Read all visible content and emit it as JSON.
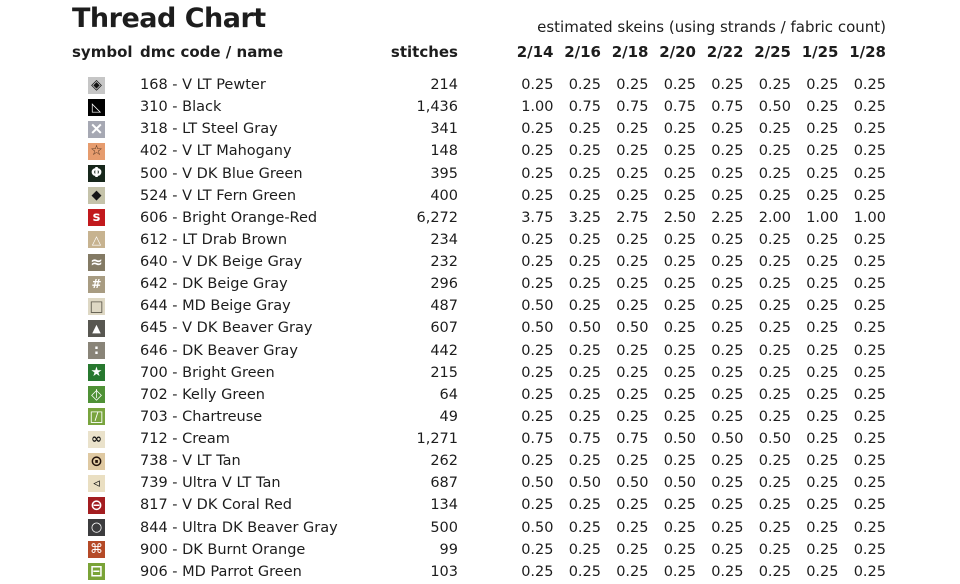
{
  "title": "Thread Chart",
  "table": {
    "columns": {
      "symbol": "symbol",
      "name": "dmc code / name",
      "stitches": "stitches",
      "skeins_group": "estimated skeins (using strands / fabric count)",
      "counts": [
        "2/14",
        "2/16",
        "2/18",
        "2/20",
        "2/22",
        "2/25",
        "1/25",
        "1/28"
      ]
    },
    "rows": [
      {
        "symbol": {
          "icon": "diamond-with-dot-icon",
          "glyph": "◈",
          "bg": "#c6c6c6",
          "fg": "#111111",
          "fs": 14
        },
        "name": "168 - V LT Pewter",
        "stitches": "214",
        "skeins": [
          "0.25",
          "0.25",
          "0.25",
          "0.25",
          "0.25",
          "0.25",
          "0.25",
          "0.25"
        ]
      },
      {
        "symbol": {
          "icon": "right-triangle-icon",
          "glyph": "◺",
          "bg": "#000000",
          "fg": "#ffffff",
          "fs": 12
        },
        "name": "310 - Black",
        "stitches": "1,436",
        "skeins": [
          "1.00",
          "0.75",
          "0.75",
          "0.75",
          "0.75",
          "0.50",
          "0.25",
          "0.25"
        ]
      },
      {
        "symbol": {
          "icon": "cross-x-icon",
          "glyph": "×",
          "bg": "#a6a8b3",
          "fg": "#ffffff",
          "fs": 17,
          "bold": true
        },
        "name": "318 - LT Steel Gray",
        "stitches": "341",
        "skeins": [
          "0.25",
          "0.25",
          "0.25",
          "0.25",
          "0.25",
          "0.25",
          "0.25",
          "0.25"
        ]
      },
      {
        "symbol": {
          "icon": "star-outline-icon",
          "glyph": "☆",
          "bg": "#e69c6e",
          "fg": "#3a2517",
          "fs": 14
        },
        "name": "402 - V LT Mahogany",
        "stitches": "148",
        "skeins": [
          "0.25",
          "0.25",
          "0.25",
          "0.25",
          "0.25",
          "0.25",
          "0.25",
          "0.25"
        ]
      },
      {
        "symbol": {
          "icon": "circle-vertical-bar-icon",
          "glyph": "Φ",
          "bg": "#17271b",
          "fg": "#ffffff",
          "fs": 13,
          "bold": true
        },
        "name": "500 - V DK Blue Green",
        "stitches": "395",
        "skeins": [
          "0.25",
          "0.25",
          "0.25",
          "0.25",
          "0.25",
          "0.25",
          "0.25",
          "0.25"
        ]
      },
      {
        "symbol": {
          "icon": "filled-diamond-icon",
          "glyph": "◆",
          "bg": "#c5c3aa",
          "fg": "#151515",
          "fs": 13
        },
        "name": "524 - V LT Fern Green",
        "stitches": "400",
        "skeins": [
          "0.25",
          "0.25",
          "0.25",
          "0.25",
          "0.25",
          "0.25",
          "0.25",
          "0.25"
        ]
      },
      {
        "symbol": {
          "icon": "letter-s-icon",
          "glyph": "s",
          "bg": "#c2191d",
          "fg": "#ffffff",
          "fs": 13,
          "bold": true
        },
        "name": "606 - Bright Orange-Red",
        "stitches": "6,272",
        "skeins": [
          "3.75",
          "3.25",
          "2.75",
          "2.50",
          "2.25",
          "2.00",
          "1.00",
          "1.00"
        ]
      },
      {
        "symbol": {
          "icon": "triangle-outline-icon",
          "glyph": "△",
          "bg": "#c7b390",
          "fg": "#ffffff",
          "fs": 12
        },
        "name": "612 - LT Drab Brown",
        "stitches": "234",
        "skeins": [
          "0.25",
          "0.25",
          "0.25",
          "0.25",
          "0.25",
          "0.25",
          "0.25",
          "0.25"
        ]
      },
      {
        "symbol": {
          "icon": "approx-equals-icon",
          "glyph": "≈",
          "bg": "#837a64",
          "fg": "#ffffff",
          "fs": 15,
          "bold": true
        },
        "name": "640 - V DK Beige Gray",
        "stitches": "232",
        "skeins": [
          "0.25",
          "0.25",
          "0.25",
          "0.25",
          "0.25",
          "0.25",
          "0.25",
          "0.25"
        ]
      },
      {
        "symbol": {
          "icon": "hash-grid-icon",
          "glyph": "#",
          "bg": "#a89c82",
          "fg": "#ffffff",
          "fs": 12,
          "bold": true
        },
        "name": "642 - DK Beige Gray",
        "stitches": "296",
        "skeins": [
          "0.25",
          "0.25",
          "0.25",
          "0.25",
          "0.25",
          "0.25",
          "0.25",
          "0.25"
        ]
      },
      {
        "symbol": {
          "icon": "square-outline-icon",
          "glyph": "□",
          "bg": "#ded8c4",
          "fg": "#5a564a",
          "fs": 15
        },
        "name": "644 - MD Beige Gray",
        "stitches": "487",
        "skeins": [
          "0.50",
          "0.25",
          "0.25",
          "0.25",
          "0.25",
          "0.25",
          "0.25",
          "0.25"
        ]
      },
      {
        "symbol": {
          "icon": "filled-triangle-icon",
          "glyph": "▲",
          "bg": "#585751",
          "fg": "#ffffff",
          "fs": 11
        },
        "name": "645 - V DK Beaver Gray",
        "stitches": "607",
        "skeins": [
          "0.50",
          "0.50",
          "0.50",
          "0.25",
          "0.25",
          "0.25",
          "0.25",
          "0.25"
        ]
      },
      {
        "symbol": {
          "icon": "colon-dots-icon",
          "glyph": ":",
          "bg": "#898478",
          "fg": "#ffffff",
          "fs": 13,
          "bold": true
        },
        "name": "646 - DK Beaver Gray",
        "stitches": "442",
        "skeins": [
          "0.25",
          "0.25",
          "0.25",
          "0.25",
          "0.25",
          "0.25",
          "0.25",
          "0.25"
        ]
      },
      {
        "symbol": {
          "icon": "filled-star-icon",
          "glyph": "★",
          "bg": "#27782f",
          "fg": "#ffffff",
          "fs": 13
        },
        "name": "700 - Bright Green",
        "stitches": "215",
        "skeins": [
          "0.25",
          "0.25",
          "0.25",
          "0.25",
          "0.25",
          "0.25",
          "0.25",
          "0.25"
        ]
      },
      {
        "symbol": {
          "icon": "diamond-vertical-bar-icon",
          "glyph": "◇",
          "glyph2": "|",
          "bg": "#4f9136",
          "fg": "#ffffff",
          "fs": 14,
          "fs2": 9
        },
        "name": "702 - Kelly Green",
        "stitches": "64",
        "skeins": [
          "0.25",
          "0.25",
          "0.25",
          "0.25",
          "0.25",
          "0.25",
          "0.25",
          "0.25"
        ]
      },
      {
        "symbol": {
          "icon": "square-diagonal-icon",
          "glyph": "□",
          "glyph2": "/",
          "bg": "#79a43e",
          "fg": "#ffffff",
          "fs": 15,
          "fs2": 11
        },
        "name": "703 - Chartreuse",
        "stitches": "49",
        "skeins": [
          "0.25",
          "0.25",
          "0.25",
          "0.25",
          "0.25",
          "0.25",
          "0.25",
          "0.25"
        ]
      },
      {
        "symbol": {
          "icon": "infinity-icon",
          "glyph": "∞",
          "bg": "#eae2cb",
          "fg": "#111111",
          "fs": 13,
          "bold": true
        },
        "name": "712 - Cream",
        "stitches": "1,271",
        "skeins": [
          "0.75",
          "0.75",
          "0.75",
          "0.50",
          "0.50",
          "0.50",
          "0.25",
          "0.25"
        ]
      },
      {
        "symbol": {
          "icon": "circle-dot-icon",
          "glyph": "⊙",
          "bg": "#dfc9a2",
          "fg": "#201008",
          "fs": 15,
          "bold": true
        },
        "name": "738 - V LT Tan",
        "stitches": "262",
        "skeins": [
          "0.25",
          "0.25",
          "0.25",
          "0.25",
          "0.25",
          "0.25",
          "0.25",
          "0.25"
        ]
      },
      {
        "symbol": {
          "icon": "left-triangle-icon",
          "glyph": "◃",
          "bg": "#eadfc2",
          "fg": "#111111",
          "fs": 13
        },
        "name": "739 - Ultra V LT Tan",
        "stitches": "687",
        "skeins": [
          "0.50",
          "0.50",
          "0.50",
          "0.50",
          "0.25",
          "0.25",
          "0.25",
          "0.25"
        ]
      },
      {
        "symbol": {
          "icon": "circle-minus-icon",
          "glyph": "⊖",
          "bg": "#a31d20",
          "fg": "#ffffff",
          "fs": 15,
          "bold": true
        },
        "name": "817 - V DK Coral Red",
        "stitches": "134",
        "skeins": [
          "0.25",
          "0.25",
          "0.25",
          "0.25",
          "0.25",
          "0.25",
          "0.25",
          "0.25"
        ]
      },
      {
        "symbol": {
          "icon": "circle-outline-icon",
          "glyph": "○",
          "bg": "#3c3c3e",
          "fg": "#ffffff",
          "fs": 13,
          "bold": true
        },
        "name": "844 - Ultra DK Beaver Gray",
        "stitches": "500",
        "skeins": [
          "0.50",
          "0.25",
          "0.25",
          "0.25",
          "0.25",
          "0.25",
          "0.25",
          "0.25"
        ]
      },
      {
        "symbol": {
          "icon": "command-icon",
          "glyph": "⌘",
          "bg": "#b54a27",
          "fg": "#ffffff",
          "fs": 13
        },
        "name": "900 - DK Burnt Orange",
        "stitches": "99",
        "skeins": [
          "0.25",
          "0.25",
          "0.25",
          "0.25",
          "0.25",
          "0.25",
          "0.25",
          "0.25"
        ]
      },
      {
        "symbol": {
          "icon": "square-minus-icon",
          "glyph": "⊟",
          "bg": "#7aa337",
          "fg": "#ffffff",
          "fs": 15,
          "bold": true
        },
        "name": "906 - MD Parrot Green",
        "stitches": "103",
        "skeins": [
          "0.25",
          "0.25",
          "0.25",
          "0.25",
          "0.25",
          "0.25",
          "0.25",
          "0.25"
        ]
      }
    ]
  }
}
